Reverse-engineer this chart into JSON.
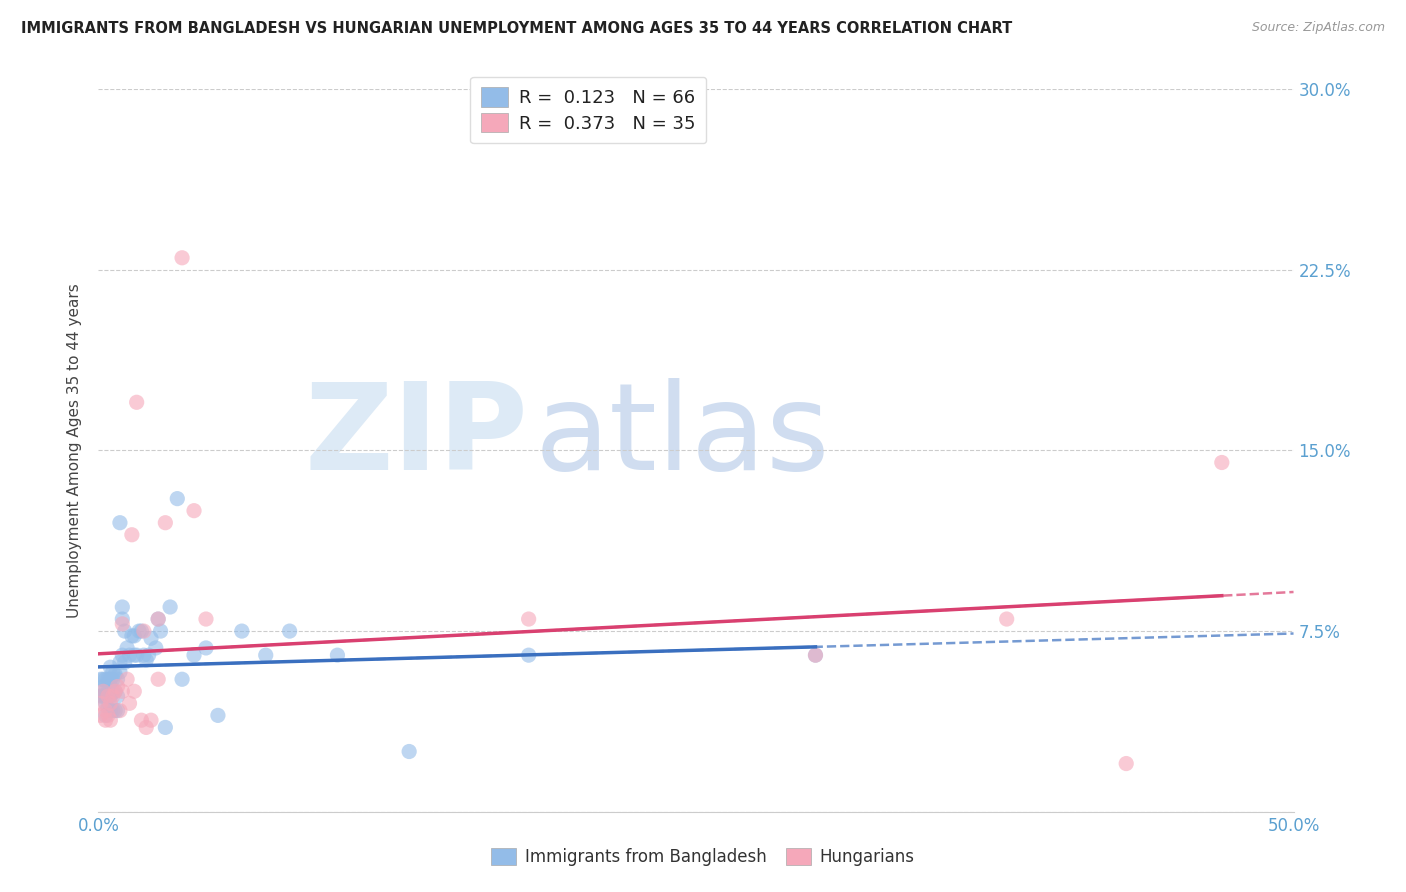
{
  "title": "IMMIGRANTS FROM BANGLADESH VS HUNGARIAN UNEMPLOYMENT AMONG AGES 35 TO 44 YEARS CORRELATION CHART",
  "source": "Source: ZipAtlas.com",
  "ylabel": "Unemployment Among Ages 35 to 44 years",
  "xlim": [
    0,
    0.5
  ],
  "ylim": [
    0,
    0.3
  ],
  "xticks": [
    0.0,
    0.1,
    0.2,
    0.3,
    0.4,
    0.5
  ],
  "yticks": [
    0.0,
    0.075,
    0.15,
    0.225,
    0.3
  ],
  "legend_label_blue": "Immigrants from Bangladesh",
  "legend_label_pink": "Hungarians",
  "R_blue": "0.123",
  "N_blue": "66",
  "R_pink": "0.373",
  "N_pink": "35",
  "color_blue": "#93BCE8",
  "color_pink": "#F5A8BA",
  "color_blue_line": "#3A6FBF",
  "color_pink_line": "#D94070",
  "color_axis_text": "#5BA0D0",
  "color_title": "#222222",
  "color_source": "#999999",
  "color_grid": "#CCCCCC",
  "background": "#FFFFFF",
  "blue_x": [
    0.001,
    0.001,
    0.002,
    0.002,
    0.002,
    0.003,
    0.003,
    0.003,
    0.003,
    0.003,
    0.004,
    0.004,
    0.004,
    0.004,
    0.005,
    0.005,
    0.005,
    0.005,
    0.005,
    0.006,
    0.006,
    0.006,
    0.006,
    0.007,
    0.007,
    0.007,
    0.008,
    0.008,
    0.008,
    0.009,
    0.009,
    0.009,
    0.01,
    0.01,
    0.01,
    0.011,
    0.011,
    0.012,
    0.013,
    0.014,
    0.015,
    0.015,
    0.016,
    0.017,
    0.018,
    0.019,
    0.02,
    0.021,
    0.022,
    0.024,
    0.025,
    0.026,
    0.028,
    0.03,
    0.033,
    0.035,
    0.04,
    0.045,
    0.05,
    0.06,
    0.07,
    0.08,
    0.1,
    0.13,
    0.18,
    0.3
  ],
  "blue_y": [
    0.055,
    0.048,
    0.055,
    0.048,
    0.052,
    0.045,
    0.05,
    0.055,
    0.048,
    0.04,
    0.048,
    0.055,
    0.05,
    0.043,
    0.042,
    0.048,
    0.052,
    0.06,
    0.055,
    0.042,
    0.05,
    0.055,
    0.058,
    0.042,
    0.05,
    0.057,
    0.042,
    0.048,
    0.055,
    0.12,
    0.062,
    0.058,
    0.065,
    0.08,
    0.085,
    0.075,
    0.062,
    0.068,
    0.065,
    0.073,
    0.073,
    0.065,
    0.065,
    0.075,
    0.075,
    0.065,
    0.063,
    0.065,
    0.072,
    0.068,
    0.08,
    0.075,
    0.035,
    0.085,
    0.13,
    0.055,
    0.065,
    0.068,
    0.04,
    0.075,
    0.065,
    0.075,
    0.065,
    0.025,
    0.065,
    0.065
  ],
  "pink_x": [
    0.001,
    0.001,
    0.002,
    0.003,
    0.003,
    0.004,
    0.004,
    0.005,
    0.005,
    0.006,
    0.007,
    0.008,
    0.009,
    0.01,
    0.01,
    0.012,
    0.013,
    0.014,
    0.015,
    0.016,
    0.018,
    0.019,
    0.02,
    0.022,
    0.025,
    0.025,
    0.028,
    0.035,
    0.04,
    0.045,
    0.18,
    0.3,
    0.38,
    0.43,
    0.47
  ],
  "pink_y": [
    0.045,
    0.04,
    0.05,
    0.038,
    0.042,
    0.04,
    0.048,
    0.038,
    0.045,
    0.048,
    0.05,
    0.052,
    0.042,
    0.05,
    0.078,
    0.055,
    0.045,
    0.115,
    0.05,
    0.17,
    0.038,
    0.075,
    0.035,
    0.038,
    0.055,
    0.08,
    0.12,
    0.23,
    0.125,
    0.08,
    0.08,
    0.065,
    0.08,
    0.02,
    0.145
  ]
}
